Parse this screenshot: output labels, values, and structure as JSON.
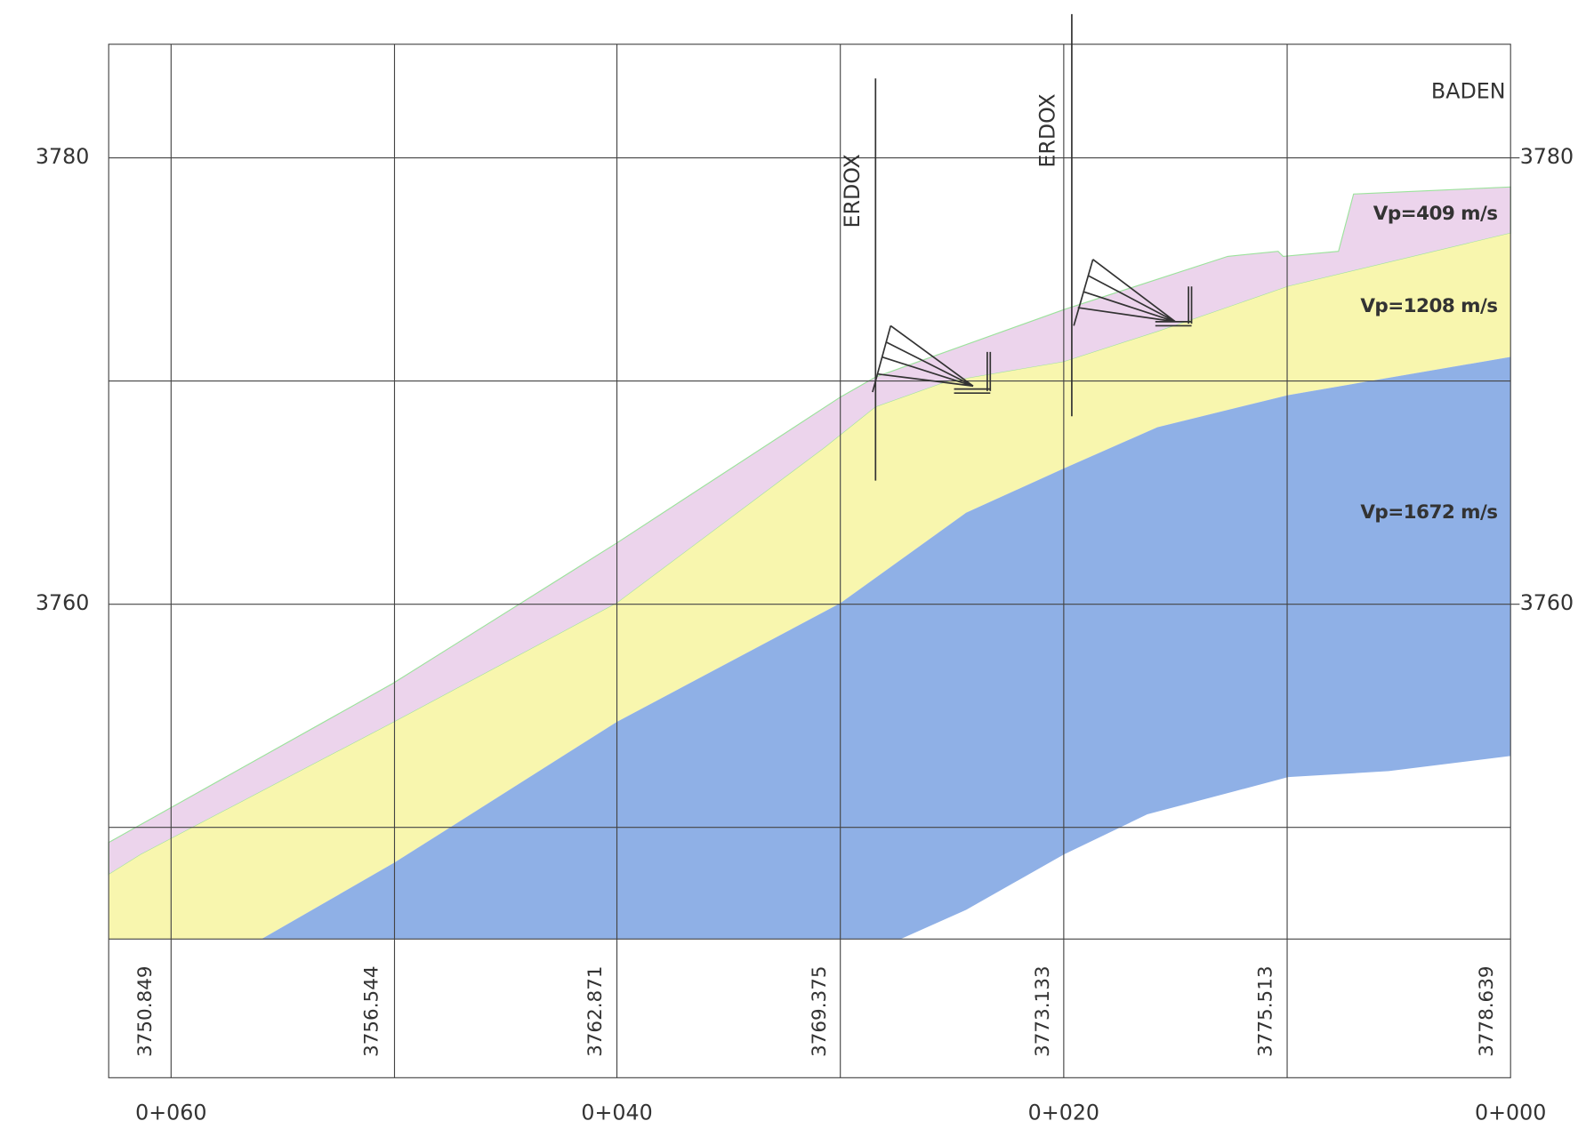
{
  "elevation_labels": {
    "left": [
      "3780",
      "3760"
    ],
    "right": [
      "3780",
      "3760"
    ]
  },
  "station_labels": [
    "0+060",
    "0+040",
    "0+020",
    "0+000"
  ],
  "table": {
    "values": [
      "3750.849",
      "3756.544",
      "3762.871",
      "3769.375",
      "3773.133",
      "3775.513",
      "3778.639"
    ]
  },
  "layers": [
    "Vp=409 m/s",
    "Vp=1208 m/s",
    "Vp=1672 m/s"
  ],
  "structures": [
    "ERDOX",
    "ERDOX"
  ],
  "site_label": "BADEN"
}
